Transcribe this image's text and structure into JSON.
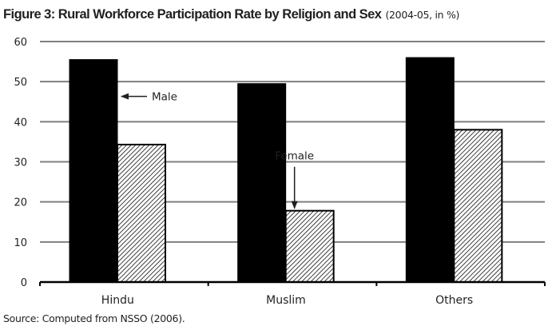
{
  "title": {
    "main": "Figure 3: Rural Workforce Participation Rate by Religion and Sex",
    "sub": "(2004-05, in %)"
  },
  "source": "Source: Computed from NSSO (2006).",
  "colors": {
    "male_fill": "#000000",
    "female_hatch": "#000000",
    "grid": "#7f7f7f",
    "axis": "#000000",
    "text": "#231f20"
  },
  "chart_data": {
    "type": "bar",
    "categories": [
      "Hindu",
      "Muslim",
      "Others"
    ],
    "series": [
      {
        "name": "Male",
        "values": [
          55.5,
          49.5,
          56
        ],
        "fill": "solid-black"
      },
      {
        "name": "Female",
        "values": [
          34.3,
          17.8,
          38
        ],
        "fill": "diagonal-hatch"
      }
    ],
    "ylim": [
      0,
      60
    ],
    "yticks": [
      0,
      10,
      20,
      30,
      40,
      50,
      60
    ],
    "xlabel": "",
    "ylabel": "",
    "grid": true,
    "legend": "inline-annotations",
    "annotations": [
      {
        "text": "Male",
        "target_category": "Hindu",
        "target_series": "Male",
        "arrow": "left"
      },
      {
        "text": "Female",
        "target_category": "Muslim",
        "target_series": "Female",
        "arrow": "down"
      }
    ]
  }
}
